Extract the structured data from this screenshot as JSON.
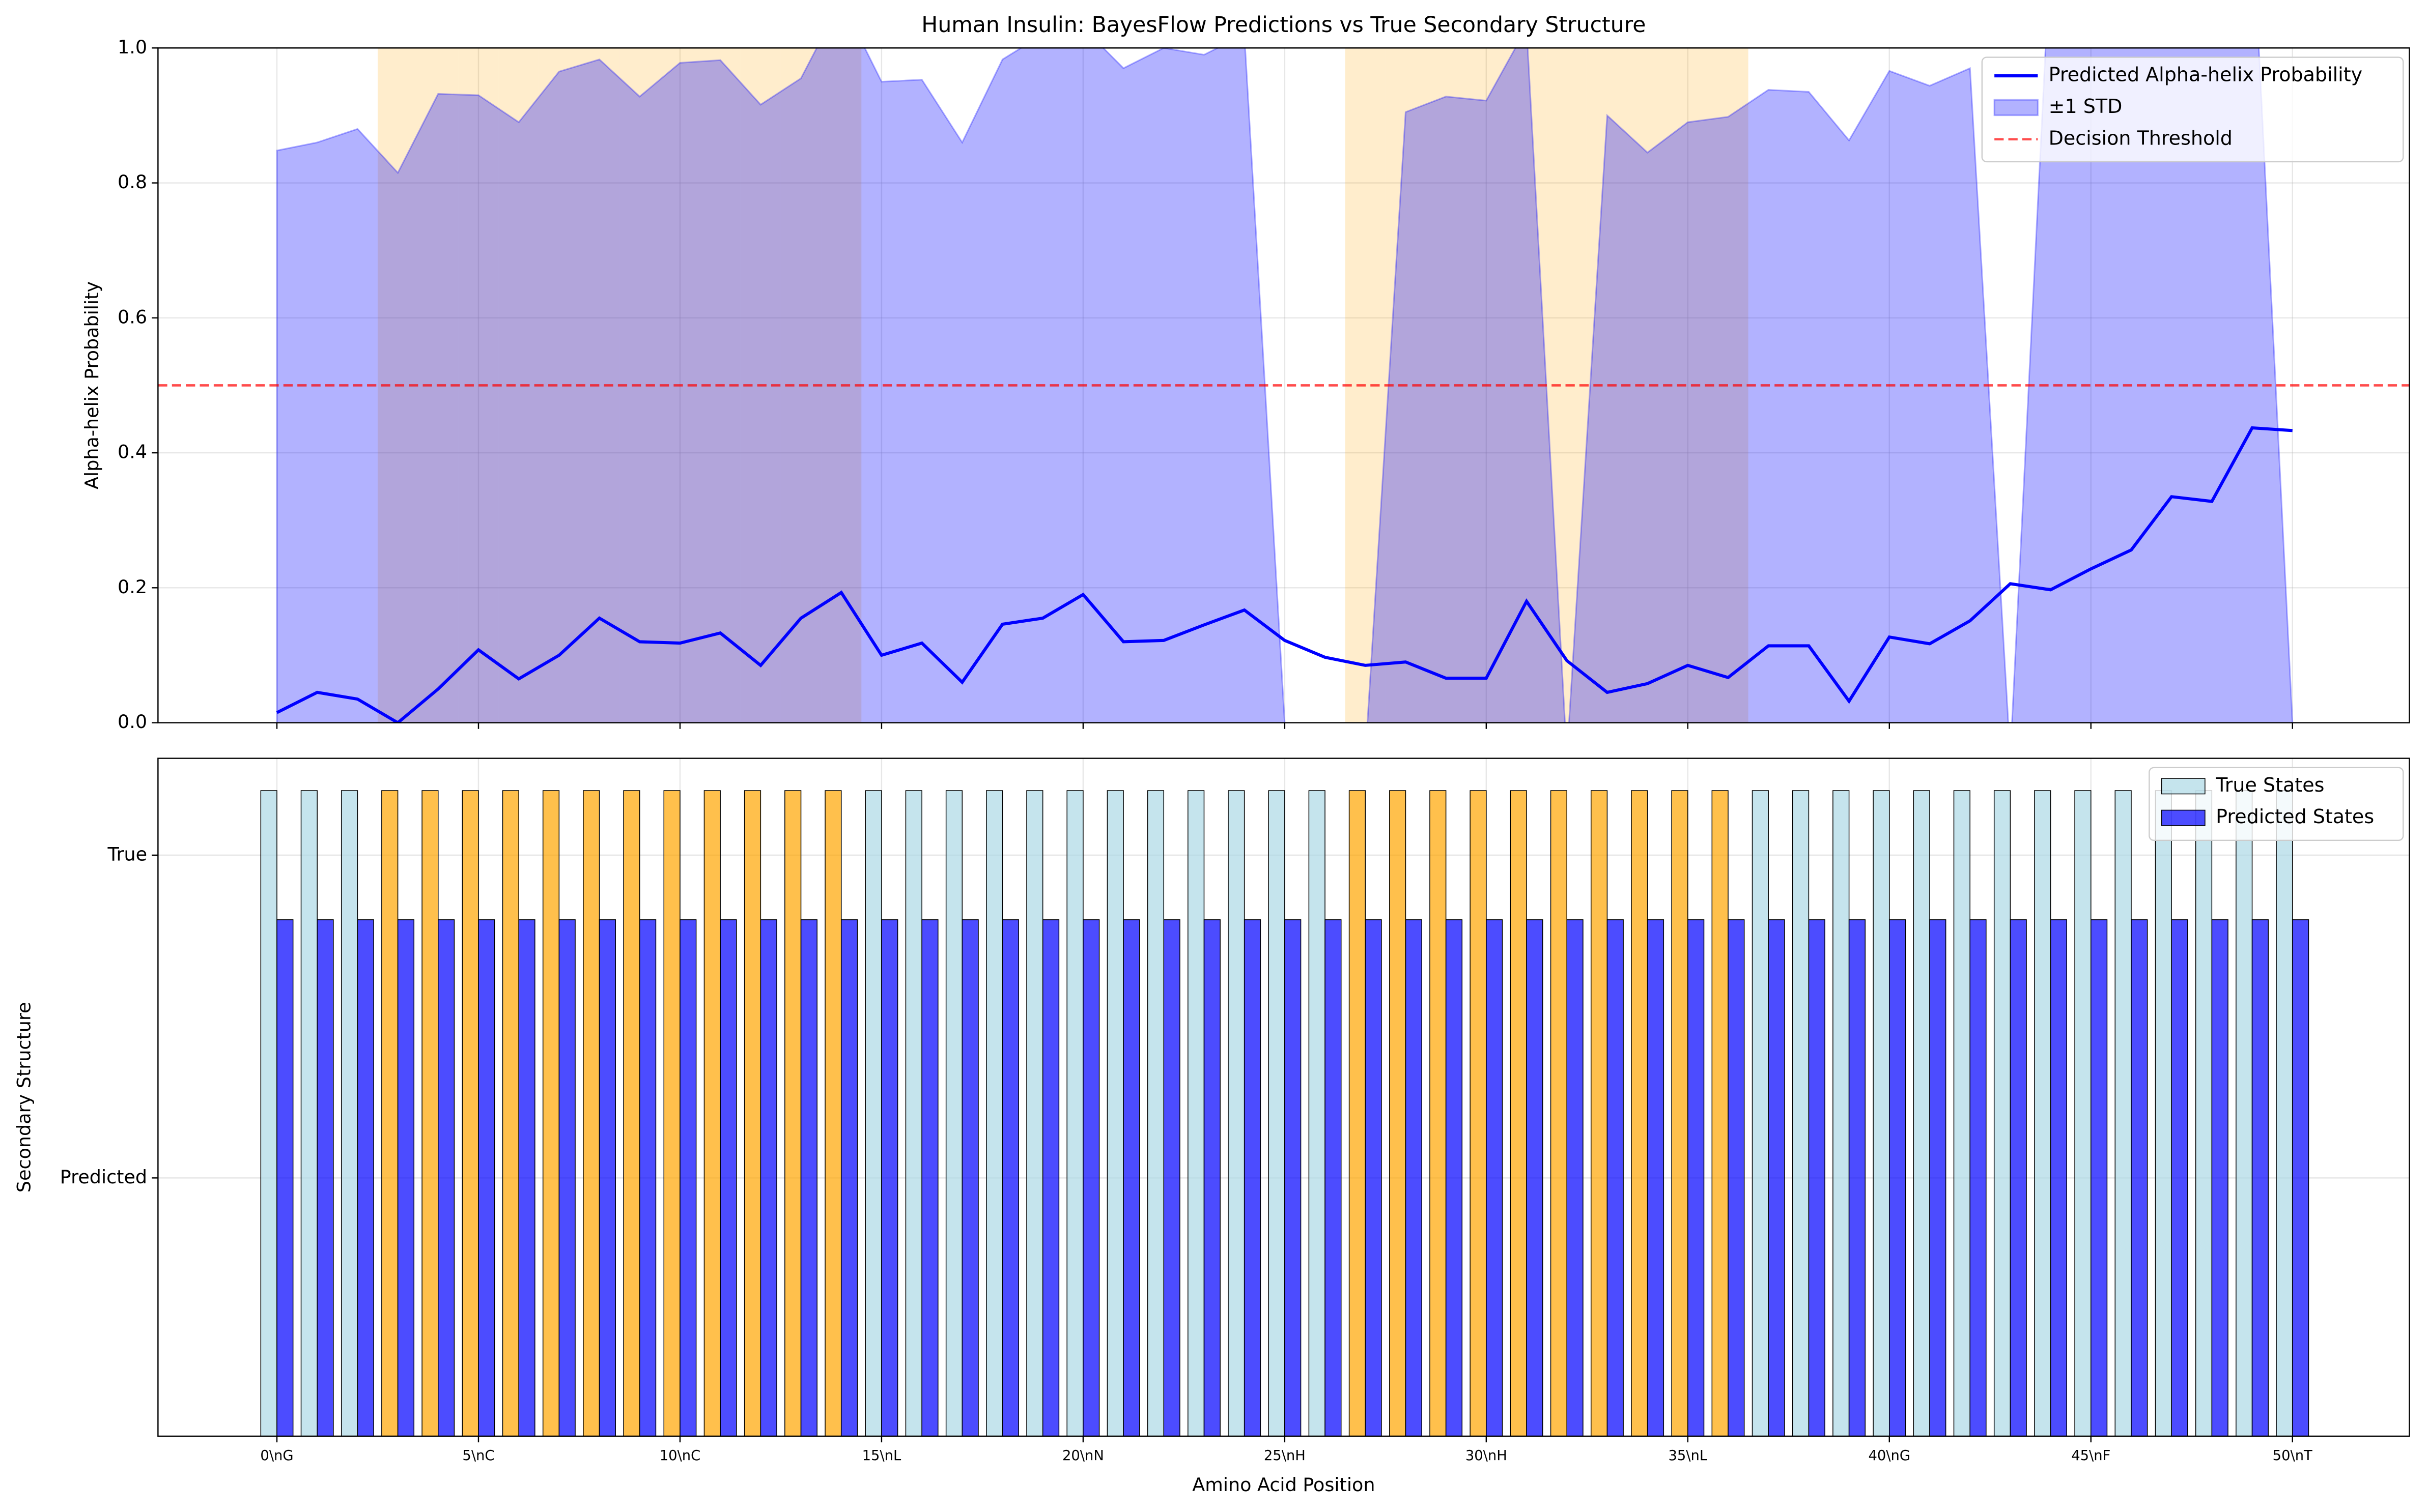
{
  "chart_data": [
    {
      "type": "line",
      "title": "Human Insulin: BayesFlow Predictions vs True Secondary Structure",
      "ylabel": "Alpha-helix Probability",
      "x": [
        0,
        1,
        2,
        3,
        4,
        5,
        6,
        7,
        8,
        9,
        10,
        11,
        12,
        13,
        14,
        15,
        16,
        17,
        18,
        19,
        20,
        21,
        22,
        23,
        24,
        25,
        26,
        27,
        28,
        29,
        30,
        31,
        32,
        33,
        34,
        35,
        36,
        37,
        38,
        39,
        40,
        41,
        42,
        43,
        44,
        45,
        46,
        47,
        48,
        49,
        50
      ],
      "series": [
        {
          "name": "Predicted Alpha-helix Probability",
          "color": "#0000ff",
          "values": [
            0.015,
            0.045,
            0.035,
            0.0,
            0.05,
            0.108,
            0.065,
            0.1,
            0.155,
            0.12,
            0.118,
            0.133,
            0.085,
            0.155,
            0.193,
            0.1,
            0.118,
            0.06,
            0.146,
            0.155,
            0.19,
            0.12,
            0.122,
            0.145,
            0.167,
            0.122,
            0.097,
            0.085,
            0.09,
            0.066,
            0.066,
            0.18,
            0.092,
            0.045,
            0.058,
            0.085,
            0.067,
            0.114,
            0.114,
            0.032,
            0.127,
            0.117,
            0.151,
            0.206,
            0.197,
            0.228,
            0.256,
            0.335,
            0.328,
            0.437,
            0.433
          ]
        }
      ],
      "band": {
        "name": "±1 STD",
        "color": "#0000ff",
        "values": [
          0.848,
          0.86,
          0.88,
          0.815,
          0.932,
          0.93,
          0.89,
          0.965,
          0.983,
          0.928,
          0.978,
          0.982,
          0.916,
          0.955,
          1.07,
          0.95,
          0.953,
          0.86,
          0.983,
          1.02,
          1.03,
          0.97,
          1.0,
          0.99,
          1.02,
          0.0,
          -0.1,
          -0.05,
          0.905,
          0.928,
          0.922,
          1.03,
          -0.05,
          0.9,
          0.845,
          0.89,
          0.898,
          0.938,
          0.935,
          0.863,
          0.966,
          0.944,
          0.97,
          -0.05,
          1.15,
          1.2,
          1.2,
          1.2,
          1.2,
          1.2,
          0.0
        ]
      },
      "threshold": {
        "name": "Decision Threshold",
        "value": 0.5,
        "color": "#ff0000"
      },
      "shaded_positions": [
        3,
        4,
        5,
        6,
        7,
        8,
        9,
        10,
        11,
        12,
        13,
        14,
        27,
        28,
        29,
        30,
        31,
        32,
        33,
        34,
        35,
        36
      ],
      "shaded_color": "#ffa500",
      "xlim": [
        -2.95,
        52.9
      ],
      "xticks": [
        0,
        5,
        10,
        15,
        20,
        25,
        30,
        35,
        40,
        45,
        50
      ],
      "ylim": [
        0,
        1
      ],
      "yticks": [
        {
          "value": 0,
          "label": "0.0"
        },
        {
          "value": 0.2,
          "label": "0.2"
        },
        {
          "value": 0.4,
          "label": "0.4"
        },
        {
          "value": 0.6,
          "label": "0.6"
        },
        {
          "value": 0.8,
          "label": "0.8"
        },
        {
          "value": 1,
          "label": "1.0"
        }
      ],
      "grid": true,
      "legend": "upper right"
    },
    {
      "type": "bar",
      "xlabel": "Amino Acid Position",
      "ylabel": "Secondary Structure",
      "x": [
        0,
        1,
        2,
        3,
        4,
        5,
        6,
        7,
        8,
        9,
        10,
        11,
        12,
        13,
        14,
        15,
        16,
        17,
        18,
        19,
        20,
        21,
        22,
        23,
        24,
        25,
        26,
        27,
        28,
        29,
        30,
        31,
        32,
        33,
        34,
        35,
        36,
        37,
        38,
        39,
        40,
        41,
        42,
        43,
        44,
        45,
        46,
        47,
        48,
        49,
        50
      ],
      "series": [
        {
          "name": "True States",
          "color": "#add8e6",
          "colors": [
            "#add8e6",
            "#add8e6",
            "#add8e6",
            "#ffa500",
            "#ffa500",
            "#ffa500",
            "#ffa500",
            "#ffa500",
            "#ffa500",
            "#ffa500",
            "#ffa500",
            "#ffa500",
            "#ffa500",
            "#ffa500",
            "#ffa500",
            "#add8e6",
            "#add8e6",
            "#add8e6",
            "#add8e6",
            "#add8e6",
            "#add8e6",
            "#add8e6",
            "#add8e6",
            "#add8e6",
            "#add8e6",
            "#add8e6",
            "#add8e6",
            "#ffa500",
            "#ffa500",
            "#ffa500",
            "#ffa500",
            "#ffa500",
            "#ffa500",
            "#ffa500",
            "#ffa500",
            "#ffa500",
            "#ffa500",
            "#add8e6",
            "#add8e6",
            "#add8e6",
            "#add8e6",
            "#add8e6",
            "#add8e6",
            "#add8e6",
            "#add8e6",
            "#add8e6",
            "#add8e6",
            "#add8e6",
            "#add8e6",
            "#add8e6",
            "#add8e6"
          ],
          "values": [
            1.2,
            1.2,
            1.2,
            1.2,
            1.2,
            1.2,
            1.2,
            1.2,
            1.2,
            1.2,
            1.2,
            1.2,
            1.2,
            1.2,
            1.2,
            1.2,
            1.2,
            1.2,
            1.2,
            1.2,
            1.2,
            1.2,
            1.2,
            1.2,
            1.2,
            1.2,
            1.2,
            1.2,
            1.2,
            1.2,
            1.2,
            1.2,
            1.2,
            1.2,
            1.2,
            1.2,
            1.2,
            1.2,
            1.2,
            1.2,
            1.2,
            1.2,
            1.2,
            1.2,
            1.2,
            1.2,
            1.2,
            1.2,
            1.2,
            1.2,
            1.2
          ]
        },
        {
          "name": "Predicted States",
          "color": "#0000ff",
          "values": [
            0.8,
            0.8,
            0.8,
            0.8,
            0.8,
            0.8,
            0.8,
            0.8,
            0.8,
            0.8,
            0.8,
            0.8,
            0.8,
            0.8,
            0.8,
            0.8,
            0.8,
            0.8,
            0.8,
            0.8,
            0.8,
            0.8,
            0.8,
            0.8,
            0.8,
            0.8,
            0.8,
            0.8,
            0.8,
            0.8,
            0.8,
            0.8,
            0.8,
            0.8,
            0.8,
            0.8,
            0.8,
            0.8,
            0.8,
            0.8,
            0.8,
            0.8,
            0.8,
            0.8,
            0.8,
            0.8,
            0.8,
            0.8,
            0.8,
            0.8,
            0.8
          ]
        }
      ],
      "xlim": [
        -2.95,
        52.9
      ],
      "xticks": [
        {
          "value": 0,
          "label": "0\\nG"
        },
        {
          "value": 5,
          "label": "5\\nC"
        },
        {
          "value": 10,
          "label": "10\\nC"
        },
        {
          "value": 15,
          "label": "15\\nL"
        },
        {
          "value": 20,
          "label": "20\\nN"
        },
        {
          "value": 25,
          "label": "25\\nH"
        },
        {
          "value": 30,
          "label": "30\\nH"
        },
        {
          "value": 35,
          "label": "35\\nL"
        },
        {
          "value": 40,
          "label": "40\\nG"
        },
        {
          "value": 45,
          "label": "45\\nF"
        },
        {
          "value": 50,
          "label": "50\\nT"
        }
      ],
      "ylim": [
        -0.8,
        1.3
      ],
      "yticks": [
        {
          "value": 0,
          "label": "Predicted"
        },
        {
          "value": 1,
          "label": "True"
        }
      ],
      "grid": true,
      "legend": "upper right"
    }
  ]
}
